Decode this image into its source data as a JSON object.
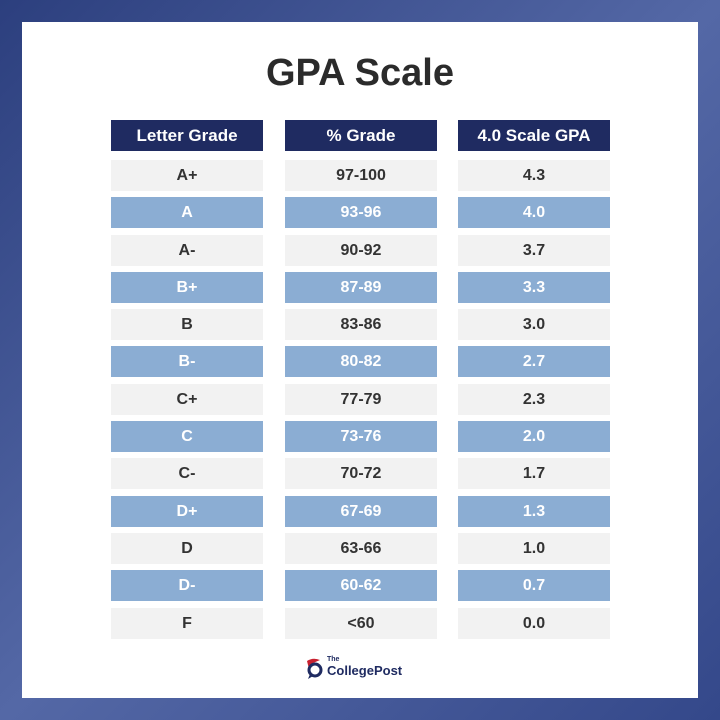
{
  "title": "GPA Scale",
  "headers": [
    "Letter Grade",
    "% Grade",
    "4.0 Scale GPA"
  ],
  "rows": [
    [
      "A+",
      "97-100",
      "4.3"
    ],
    [
      "A",
      "93-96",
      "4.0"
    ],
    [
      "A-",
      "90-92",
      "3.7"
    ],
    [
      "B+",
      "87-89",
      "3.3"
    ],
    [
      "B",
      "83-86",
      "3.0"
    ],
    [
      "B-",
      "80-82",
      "2.7"
    ],
    [
      "C+",
      "77-79",
      "2.3"
    ],
    [
      "C",
      "73-76",
      "2.0"
    ],
    [
      "C-",
      "70-72",
      "1.7"
    ],
    [
      "D+",
      "67-69",
      "1.3"
    ],
    [
      "D",
      "63-66",
      "1.0"
    ],
    [
      "D-",
      "60-62",
      "0.7"
    ],
    [
      "F",
      "<60",
      "0.0"
    ]
  ],
  "logo": {
    "the": "The",
    "name": "CollegePost"
  },
  "colors": {
    "header": "#1f2b61",
    "stripe": "#8badd3",
    "light": "#f2f2f2",
    "border": "#2c3f7e"
  }
}
